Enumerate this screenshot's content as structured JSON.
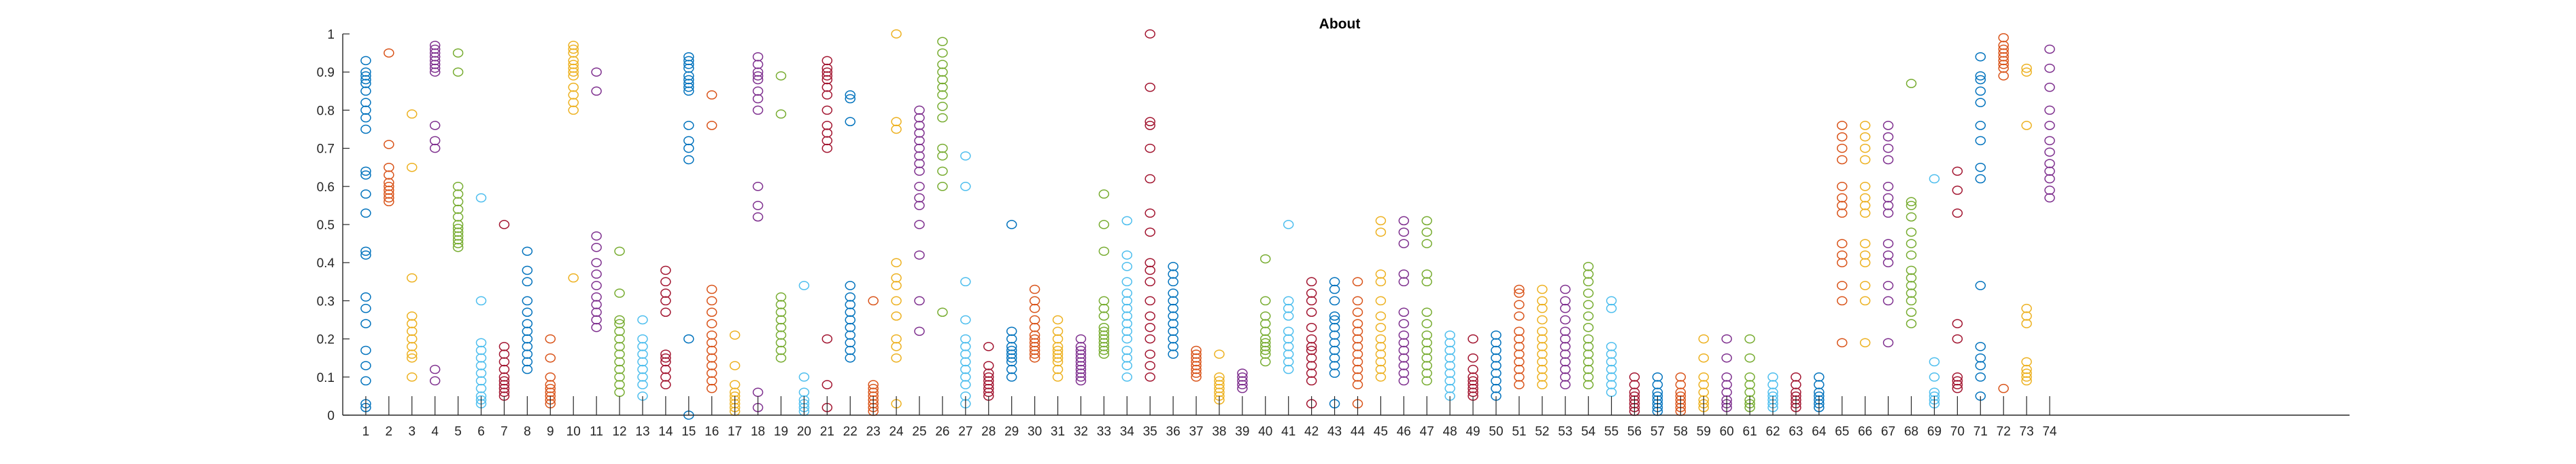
{
  "chart_data": {
    "type": "scatter",
    "title": "About",
    "xlabel": "",
    "ylabel": "",
    "xlim": [
      0,
      87
    ],
    "ylim": [
      0,
      1
    ],
    "categories": [
      "1",
      "2",
      "3",
      "4",
      "5",
      "6",
      "7",
      "8",
      "9",
      "10",
      "11",
      "12",
      "13",
      "14",
      "15",
      "16",
      "17",
      "18",
      "19",
      "20",
      "21",
      "22",
      "23",
      "24",
      "25",
      "26",
      "27",
      "28",
      "29",
      "30",
      "31",
      "32",
      "33",
      "34",
      "35",
      "36",
      "37",
      "38",
      "39",
      "40",
      "41",
      "42",
      "43",
      "44",
      "45",
      "46",
      "47",
      "48",
      "49",
      "50",
      "51",
      "52",
      "53",
      "54",
      "55",
      "56",
      "57",
      "58",
      "59",
      "60",
      "61",
      "62",
      "63",
      "64",
      "65",
      "66",
      "67",
      "68",
      "69",
      "70",
      "71",
      "72",
      "73",
      "74"
    ],
    "y_ticks": [
      "0",
      "0.1",
      "0.2",
      "0.3",
      "0.4",
      "0.5",
      "0.6",
      "0.7",
      "0.8",
      "0.9",
      "1"
    ],
    "palette": [
      "#0072BD",
      "#D95319",
      "#EDB120",
      "#7E2F8E",
      "#77AC30",
      "#4DBEEE",
      "#A2142F"
    ],
    "grid": false,
    "legend": "none",
    "columns": [
      [
        0.93,
        0.9,
        0.89,
        0.88,
        0.87,
        0.85,
        0.82,
        0.8,
        0.78,
        0.75,
        0.64,
        0.63,
        0.58,
        0.53,
        0.43,
        0.42,
        0.31,
        0.28,
        0.24,
        0.17,
        0.13,
        0.09,
        0.03,
        0.02
      ],
      [
        0.95,
        0.71,
        0.65,
        0.63,
        0.61,
        0.6,
        0.59,
        0.58,
        0.57,
        0.56
      ],
      [
        0.79,
        0.65,
        0.36,
        0.26,
        0.24,
        0.22,
        0.2,
        0.18,
        0.16,
        0.15,
        0.1
      ],
      [
        0.97,
        0.96,
        0.95,
        0.94,
        0.93,
        0.92,
        0.91,
        0.9,
        0.76,
        0.72,
        0.7,
        0.12,
        0.09
      ],
      [
        0.95,
        0.9,
        0.6,
        0.58,
        0.56,
        0.54,
        0.52,
        0.5,
        0.49,
        0.48,
        0.47,
        0.46,
        0.45,
        0.44
      ],
      [
        0.57,
        0.3,
        0.19,
        0.17,
        0.15,
        0.13,
        0.11,
        0.09,
        0.07,
        0.05,
        0.04,
        0.03
      ],
      [
        0.5,
        0.18,
        0.16,
        0.14,
        0.12,
        0.1,
        0.09,
        0.08,
        0.07,
        0.06,
        0.05
      ],
      [
        0.43,
        0.38,
        0.35,
        0.3,
        0.27,
        0.24,
        0.22,
        0.2,
        0.18,
        0.16,
        0.14,
        0.12
      ],
      [
        0.2,
        0.15,
        0.1,
        0.08,
        0.07,
        0.06,
        0.05,
        0.04,
        0.03
      ],
      [
        0.97,
        0.96,
        0.95,
        0.93,
        0.92,
        0.91,
        0.9,
        0.89,
        0.86,
        0.84,
        0.82,
        0.8,
        0.36
      ],
      [
        0.9,
        0.85,
        0.47,
        0.44,
        0.4,
        0.37,
        0.34,
        0.31,
        0.29,
        0.27,
        0.25,
        0.23
      ],
      [
        0.43,
        0.32,
        0.25,
        0.24,
        0.22,
        0.2,
        0.18,
        0.16,
        0.14,
        0.12,
        0.1,
        0.08,
        0.06
      ],
      [
        0.25,
        0.2,
        0.18,
        0.16,
        0.14,
        0.12,
        0.1,
        0.08,
        0.05
      ],
      [
        0.38,
        0.35,
        0.32,
        0.3,
        0.27,
        0.16,
        0.15,
        0.14,
        0.12,
        0.1,
        0.08
      ],
      [
        0.94,
        0.93,
        0.92,
        0.91,
        0.89,
        0.88,
        0.87,
        0.86,
        0.85,
        0.76,
        0.72,
        0.7,
        0.67,
        0.2,
        0.0
      ],
      [
        0.84,
        0.76,
        0.33,
        0.3,
        0.27,
        0.24,
        0.21,
        0.19,
        0.17,
        0.15,
        0.13,
        0.11,
        0.09,
        0.07
      ],
      [
        0.21,
        0.13,
        0.08,
        0.06,
        0.05,
        0.04,
        0.03,
        0.02,
        0.01
      ],
      [
        0.94,
        0.92,
        0.9,
        0.89,
        0.88,
        0.85,
        0.83,
        0.8,
        0.6,
        0.55,
        0.52,
        0.06,
        0.02
      ],
      [
        0.89,
        0.79,
        0.31,
        0.29,
        0.27,
        0.25,
        0.23,
        0.21,
        0.19,
        0.17,
        0.15
      ],
      [
        0.34,
        0.1,
        0.06,
        0.04,
        0.03,
        0.02,
        0.01
      ],
      [
        0.93,
        0.91,
        0.9,
        0.89,
        0.88,
        0.86,
        0.84,
        0.8,
        0.76,
        0.74,
        0.72,
        0.7,
        0.2,
        0.08,
        0.02
      ],
      [
        0.84,
        0.83,
        0.77,
        0.34,
        0.31,
        0.29,
        0.27,
        0.25,
        0.23,
        0.21,
        0.19,
        0.17,
        0.15
      ],
      [
        0.3,
        0.08,
        0.07,
        0.06,
        0.05,
        0.04,
        0.03,
        0.02,
        0.01
      ],
      [
        1.0,
        0.77,
        0.75,
        0.4,
        0.36,
        0.34,
        0.3,
        0.26,
        0.2,
        0.18,
        0.15,
        0.03
      ],
      [
        0.8,
        0.78,
        0.76,
        0.74,
        0.72,
        0.7,
        0.68,
        0.66,
        0.64,
        0.6,
        0.57,
        0.55,
        0.5,
        0.42,
        0.3,
        0.22
      ],
      [
        0.98,
        0.95,
        0.92,
        0.9,
        0.88,
        0.86,
        0.84,
        0.81,
        0.78,
        0.7,
        0.68,
        0.64,
        0.6,
        0.27
      ],
      [
        0.68,
        0.6,
        0.35,
        0.25,
        0.2,
        0.18,
        0.16,
        0.14,
        0.12,
        0.1,
        0.08,
        0.05,
        0.03
      ],
      [
        0.18,
        0.13,
        0.11,
        0.1,
        0.09,
        0.08,
        0.07,
        0.06,
        0.05
      ],
      [
        0.5,
        0.22,
        0.2,
        0.18,
        0.17,
        0.16,
        0.15,
        0.14,
        0.12,
        0.1
      ],
      [
        0.33,
        0.3,
        0.28,
        0.25,
        0.23,
        0.21,
        0.2,
        0.19,
        0.18,
        0.17,
        0.16,
        0.15
      ],
      [
        0.25,
        0.22,
        0.2,
        0.18,
        0.17,
        0.16,
        0.15,
        0.14,
        0.12,
        0.1
      ],
      [
        0.2,
        0.18,
        0.17,
        0.16,
        0.15,
        0.14,
        0.13,
        0.12,
        0.11,
        0.1,
        0.09
      ],
      [
        0.58,
        0.5,
        0.43,
        0.3,
        0.28,
        0.26,
        0.23,
        0.22,
        0.21,
        0.2,
        0.19,
        0.18,
        0.17,
        0.16
      ],
      [
        0.51,
        0.42,
        0.39,
        0.35,
        0.32,
        0.3,
        0.28,
        0.26,
        0.24,
        0.22,
        0.2,
        0.17,
        0.15,
        0.13,
        0.1
      ],
      [
        1.0,
        0.86,
        0.77,
        0.76,
        0.7,
        0.62,
        0.53,
        0.48,
        0.4,
        0.38,
        0.35,
        0.3,
        0.26,
        0.23,
        0.2,
        0.16,
        0.13,
        0.1
      ],
      [
        0.39,
        0.37,
        0.35,
        0.32,
        0.3,
        0.28,
        0.26,
        0.24,
        0.22,
        0.2,
        0.18,
        0.16
      ],
      [
        0.17,
        0.16,
        0.15,
        0.14,
        0.13,
        0.12,
        0.11,
        0.1
      ],
      [
        0.16,
        0.1,
        0.09,
        0.08,
        0.07,
        0.06,
        0.05,
        0.04
      ],
      [
        0.11,
        0.1,
        0.09,
        0.08,
        0.07
      ],
      [
        0.41,
        0.3,
        0.26,
        0.24,
        0.22,
        0.2,
        0.19,
        0.18,
        0.17,
        0.16,
        0.14
      ],
      [
        0.5,
        0.3,
        0.28,
        0.26,
        0.22,
        0.2,
        0.18,
        0.16,
        0.14,
        0.12
      ],
      [
        0.35,
        0.32,
        0.3,
        0.27,
        0.23,
        0.2,
        0.18,
        0.17,
        0.15,
        0.13,
        0.11,
        0.09,
        0.03
      ],
      [
        0.35,
        0.33,
        0.3,
        0.26,
        0.25,
        0.23,
        0.21,
        0.19,
        0.17,
        0.15,
        0.13,
        0.11,
        0.03
      ],
      [
        0.35,
        0.3,
        0.27,
        0.24,
        0.22,
        0.2,
        0.18,
        0.16,
        0.14,
        0.12,
        0.1,
        0.08,
        0.03
      ],
      [
        0.51,
        0.48,
        0.37,
        0.35,
        0.3,
        0.26,
        0.23,
        0.2,
        0.18,
        0.16,
        0.14,
        0.12,
        0.1
      ],
      [
        0.51,
        0.48,
        0.45,
        0.37,
        0.35,
        0.27,
        0.24,
        0.21,
        0.19,
        0.17,
        0.15,
        0.13,
        0.11,
        0.09
      ],
      [
        0.51,
        0.48,
        0.45,
        0.37,
        0.35,
        0.27,
        0.24,
        0.21,
        0.19,
        0.17,
        0.15,
        0.13,
        0.11,
        0.09
      ],
      [
        0.21,
        0.19,
        0.17,
        0.15,
        0.13,
        0.11,
        0.09,
        0.07,
        0.05
      ],
      [
        0.2,
        0.15,
        0.12,
        0.1,
        0.09,
        0.08,
        0.07,
        0.06,
        0.05
      ],
      [
        0.21,
        0.19,
        0.17,
        0.15,
        0.13,
        0.11,
        0.09,
        0.07,
        0.05
      ],
      [
        0.33,
        0.32,
        0.29,
        0.26,
        0.22,
        0.2,
        0.18,
        0.16,
        0.14,
        0.12,
        0.1,
        0.08
      ],
      [
        0.33,
        0.3,
        0.28,
        0.25,
        0.22,
        0.2,
        0.18,
        0.16,
        0.14,
        0.12,
        0.1,
        0.08
      ],
      [
        0.33,
        0.3,
        0.28,
        0.25,
        0.22,
        0.2,
        0.18,
        0.16,
        0.14,
        0.12,
        0.1,
        0.08
      ],
      [
        0.39,
        0.37,
        0.35,
        0.32,
        0.29,
        0.26,
        0.23,
        0.2,
        0.18,
        0.16,
        0.14,
        0.12,
        0.1,
        0.08
      ],
      [
        0.3,
        0.28,
        0.18,
        0.16,
        0.14,
        0.12,
        0.1,
        0.08,
        0.06
      ],
      [
        0.1,
        0.08,
        0.06,
        0.05,
        0.04,
        0.03,
        0.02,
        0.01
      ],
      [
        0.1,
        0.08,
        0.06,
        0.05,
        0.04,
        0.03,
        0.02,
        0.01
      ],
      [
        0.1,
        0.08,
        0.06,
        0.05,
        0.04,
        0.03,
        0.02,
        0.01
      ],
      [
        0.2,
        0.15,
        0.1,
        0.08,
        0.06,
        0.04,
        0.03,
        0.02
      ],
      [
        0.2,
        0.15,
        0.1,
        0.08,
        0.06,
        0.04,
        0.03,
        0.02
      ],
      [
        0.2,
        0.15,
        0.1,
        0.08,
        0.06,
        0.04,
        0.03,
        0.02
      ],
      [
        0.1,
        0.08,
        0.06,
        0.05,
        0.04,
        0.03,
        0.02
      ],
      [
        0.1,
        0.08,
        0.06,
        0.05,
        0.04,
        0.03,
        0.02
      ],
      [
        0.1,
        0.08,
        0.06,
        0.05,
        0.04,
        0.03,
        0.02
      ],
      [
        0.76,
        0.73,
        0.7,
        0.67,
        0.6,
        0.57,
        0.55,
        0.53,
        0.45,
        0.42,
        0.4,
        0.34,
        0.3,
        0.19
      ],
      [
        0.76,
        0.73,
        0.7,
        0.67,
        0.6,
        0.57,
        0.55,
        0.53,
        0.45,
        0.42,
        0.4,
        0.34,
        0.3,
        0.19
      ],
      [
        0.76,
        0.73,
        0.7,
        0.67,
        0.6,
        0.57,
        0.55,
        0.53,
        0.45,
        0.42,
        0.4,
        0.34,
        0.3,
        0.19
      ],
      [
        0.87,
        0.56,
        0.55,
        0.52,
        0.48,
        0.45,
        0.42,
        0.38,
        0.36,
        0.34,
        0.32,
        0.3,
        0.27,
        0.24
      ],
      [
        0.62,
        0.14,
        0.1,
        0.06,
        0.05,
        0.04,
        0.03
      ],
      [
        0.64,
        0.59,
        0.53,
        0.24,
        0.2,
        0.1,
        0.09,
        0.08,
        0.07
      ],
      [
        0.94,
        0.89,
        0.88,
        0.85,
        0.82,
        0.76,
        0.72,
        0.65,
        0.62,
        0.34,
        0.18,
        0.15,
        0.13,
        0.1,
        0.05
      ],
      [
        0.99,
        0.97,
        0.96,
        0.95,
        0.94,
        0.93,
        0.92,
        0.91,
        0.89,
        0.07
      ],
      [
        0.91,
        0.9,
        0.76,
        0.28,
        0.26,
        0.24,
        0.14,
        0.12,
        0.11,
        0.1,
        0.09
      ],
      [
        0.96,
        0.91,
        0.86,
        0.8,
        0.76,
        0.72,
        0.69,
        0.66,
        0.64,
        0.62,
        0.59,
        0.57
      ]
    ]
  }
}
